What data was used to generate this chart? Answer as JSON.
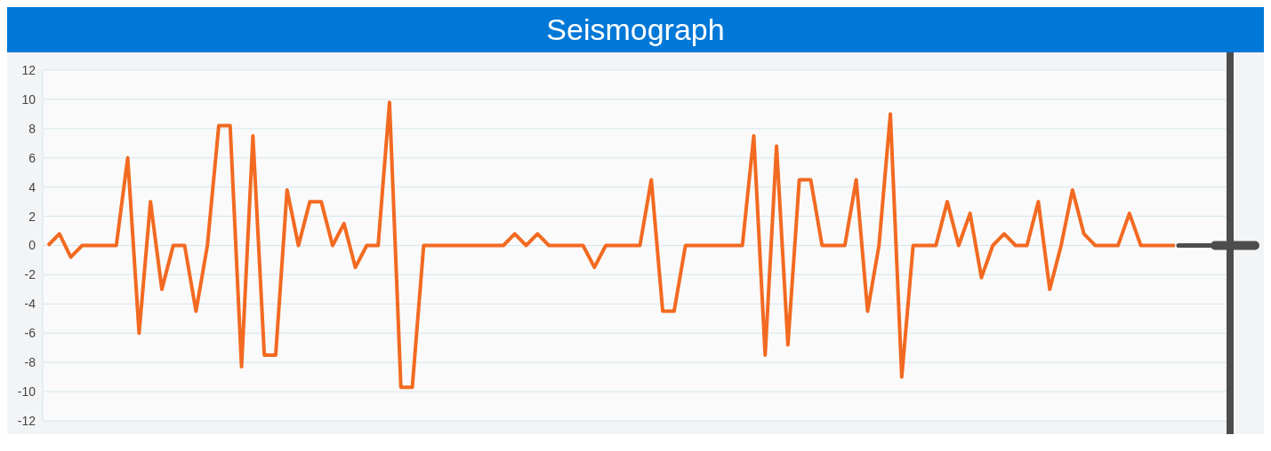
{
  "chart_data": {
    "type": "line",
    "title": "Seismograph",
    "categories": [
      null,
      null,
      null,
      null,
      null,
      null,
      null,
      null,
      null,
      null,
      null,
      null,
      null,
      null,
      null,
      null,
      null,
      null,
      null,
      null,
      null,
      null,
      null,
      null,
      null,
      null,
      null,
      null,
      null,
      null,
      null,
      null,
      null,
      null,
      null,
      null,
      null,
      null,
      null,
      null,
      null,
      null,
      null,
      null,
      null,
      null,
      null,
      null,
      null,
      null,
      null,
      null,
      null,
      null,
      null,
      null,
      null,
      null,
      null,
      null,
      null,
      null,
      null,
      null,
      null,
      null,
      null,
      null,
      null,
      null,
      null,
      null,
      null,
      null,
      null,
      null,
      null,
      null,
      null,
      null,
      null,
      null,
      null,
      null,
      null,
      null,
      null,
      null,
      null,
      null,
      null,
      null,
      null,
      null,
      null,
      null,
      null,
      null,
      null,
      null
    ],
    "series": [
      {
        "color": "#f26a21",
        "values": [
          0,
          0.8,
          -0.8,
          0,
          0,
          0,
          0,
          6,
          -6,
          3,
          -3,
          0,
          0,
          -4.5,
          0,
          8.2,
          8.2,
          -8.3,
          7.5,
          -7.5,
          -7.5,
          3.8,
          0,
          3,
          3,
          0,
          1.5,
          -1.5,
          0,
          0,
          9.8,
          -9.7,
          -9.7,
          0,
          0,
          0,
          0,
          0,
          0,
          0,
          0,
          0.8,
          0,
          0.8,
          0,
          0,
          0,
          0,
          -1.5,
          0,
          0,
          0,
          0,
          4.5,
          -4.5,
          -4.5,
          0,
          0,
          0,
          0,
          0,
          0,
          7.5,
          -7.5,
          6.8,
          -6.8,
          4.5,
          4.5,
          0,
          0,
          0,
          4.5,
          -4.5,
          0,
          9,
          -9,
          0,
          0,
          0,
          3,
          0,
          2.2,
          -2.2,
          0,
          0.8,
          0,
          0,
          3,
          -3,
          0,
          3.8,
          0.8,
          0,
          0,
          0,
          2.2,
          0,
          0,
          0,
          0
        ]
      }
    ],
    "ylim": [
      -12,
      12
    ],
    "yticks": [
      -12,
      -10,
      -8,
      -6,
      -4,
      -2,
      0,
      2,
      4,
      6,
      8,
      10,
      12
    ],
    "grid": true,
    "tick_labels": "y",
    "marker": "none",
    "line_style": "solid",
    "legend": false
  }
}
